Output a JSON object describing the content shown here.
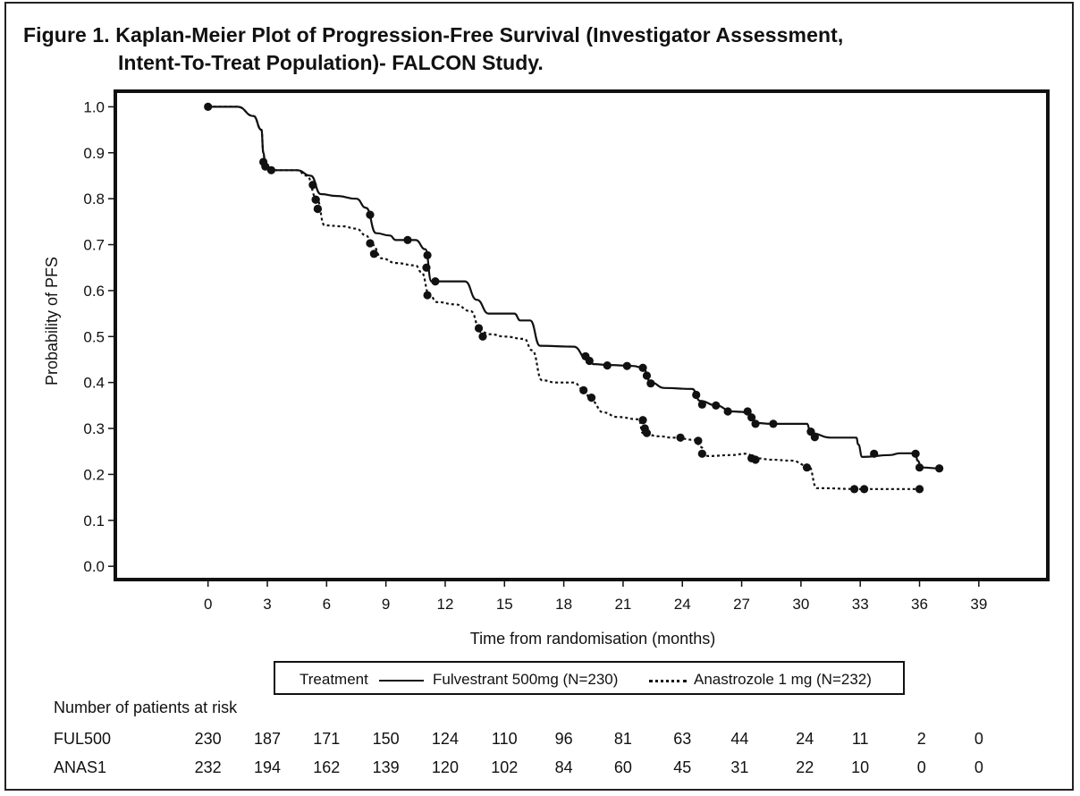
{
  "figure": {
    "title_line1": "Figure 1. Kaplan-Meier Plot of Progression-Free Survival (Investigator Assessment,",
    "title_line2": "Intent-To-Treat Population)- FALCON Study."
  },
  "chart_data": {
    "type": "line",
    "xlabel": "Time from randomisation (months)",
    "ylabel": "Probability of PFS",
    "xlim": [
      -4.6,
      42.4
    ],
    "ylim": [
      -0.025,
      1.03
    ],
    "x_ticks": [
      0,
      3,
      6,
      9,
      12,
      15,
      18,
      21,
      24,
      27,
      30,
      33,
      36,
      39
    ],
    "y_ticks": [
      0.0,
      0.1,
      0.2,
      0.3,
      0.4,
      0.5,
      0.6,
      0.7,
      0.8,
      0.9,
      1.0
    ],
    "y_tick_labels": [
      "0.0",
      "0.1",
      "0.2",
      "0.3",
      "0.4",
      "0.5",
      "0.6",
      "0.7",
      "0.8",
      "0.9",
      "1.0"
    ],
    "grid": false,
    "series": [
      {
        "name": "Fulvestrant 500mg (N=230)",
        "style": "solid",
        "color": "#111111",
        "curve": [
          [
            0,
            1.0
          ],
          [
            1.5,
            1.0
          ],
          [
            2.3,
            0.98
          ],
          [
            2.7,
            0.95
          ],
          [
            2.8,
            0.9
          ],
          [
            2.9,
            0.87
          ],
          [
            3.2,
            0.862
          ],
          [
            4.5,
            0.862
          ],
          [
            5.2,
            0.85
          ],
          [
            5.7,
            0.81
          ],
          [
            6.5,
            0.806
          ],
          [
            7.5,
            0.8
          ],
          [
            8.0,
            0.78
          ],
          [
            8.5,
            0.725
          ],
          [
            9.2,
            0.72
          ],
          [
            9.5,
            0.71
          ],
          [
            10.5,
            0.71
          ],
          [
            11.0,
            0.69
          ],
          [
            11.3,
            0.62
          ],
          [
            12.0,
            0.62
          ],
          [
            13.0,
            0.62
          ],
          [
            13.6,
            0.58
          ],
          [
            14.2,
            0.55
          ],
          [
            15.5,
            0.55
          ],
          [
            15.8,
            0.535
          ],
          [
            16.3,
            0.535
          ],
          [
            16.8,
            0.48
          ],
          [
            18.5,
            0.478
          ],
          [
            19.2,
            0.45
          ],
          [
            19.5,
            0.44
          ],
          [
            20.3,
            0.438
          ],
          [
            21.5,
            0.436
          ],
          [
            22.0,
            0.432
          ],
          [
            22.4,
            0.4
          ],
          [
            23.1,
            0.388
          ],
          [
            24.5,
            0.386
          ],
          [
            24.9,
            0.36
          ],
          [
            25.7,
            0.35
          ],
          [
            26.5,
            0.337
          ],
          [
            27.0,
            0.336
          ],
          [
            27.5,
            0.33
          ],
          [
            27.7,
            0.312
          ],
          [
            28.5,
            0.31
          ],
          [
            30.3,
            0.31
          ],
          [
            30.5,
            0.29
          ],
          [
            31.5,
            0.28
          ],
          [
            32.8,
            0.28
          ],
          [
            32.9,
            0.265
          ],
          [
            33.1,
            0.238
          ],
          [
            34.5,
            0.242
          ],
          [
            35.0,
            0.246
          ],
          [
            35.8,
            0.246
          ],
          [
            35.9,
            0.23
          ],
          [
            36.1,
            0.215
          ],
          [
            37.0,
            0.213
          ]
        ],
        "censor_marks": [
          [
            0,
            1.0
          ],
          [
            2.8,
            0.88
          ],
          [
            2.9,
            0.87
          ],
          [
            3.2,
            0.862
          ],
          [
            5.3,
            0.83
          ],
          [
            5.45,
            0.798
          ],
          [
            5.55,
            0.778
          ],
          [
            8.2,
            0.765
          ],
          [
            10.1,
            0.71
          ],
          [
            11.1,
            0.677
          ],
          [
            11.05,
            0.65
          ],
          [
            11.5,
            0.62
          ],
          [
            19.1,
            0.457
          ],
          [
            19.3,
            0.447
          ],
          [
            20.2,
            0.437
          ],
          [
            21.2,
            0.436
          ],
          [
            22.0,
            0.432
          ],
          [
            22.2,
            0.415
          ],
          [
            22.4,
            0.398
          ],
          [
            24.7,
            0.373
          ],
          [
            25.0,
            0.352
          ],
          [
            25.7,
            0.35
          ],
          [
            26.3,
            0.337
          ],
          [
            27.3,
            0.337
          ],
          [
            27.5,
            0.324
          ],
          [
            27.7,
            0.31
          ],
          [
            28.6,
            0.31
          ],
          [
            30.5,
            0.293
          ],
          [
            30.7,
            0.281
          ],
          [
            33.7,
            0.245
          ],
          [
            35.8,
            0.245
          ],
          [
            36.0,
            0.215
          ],
          [
            37.0,
            0.213
          ]
        ]
      },
      {
        "name": "Anastrozole 1 mg (N=232)",
        "style": "dashed",
        "color": "#111111",
        "curve": [
          [
            0,
            1.0
          ],
          [
            1.5,
            1.0
          ],
          [
            2.3,
            0.98
          ],
          [
            2.7,
            0.95
          ],
          [
            2.8,
            0.9
          ],
          [
            2.9,
            0.87
          ],
          [
            3.2,
            0.862
          ],
          [
            4.5,
            0.862
          ],
          [
            5.0,
            0.85
          ],
          [
            5.5,
            0.8
          ],
          [
            5.9,
            0.742
          ],
          [
            6.8,
            0.74
          ],
          [
            7.5,
            0.735
          ],
          [
            8.0,
            0.72
          ],
          [
            8.3,
            0.7
          ],
          [
            8.8,
            0.67
          ],
          [
            9.5,
            0.66
          ],
          [
            10.5,
            0.655
          ],
          [
            10.8,
            0.64
          ],
          [
            11.2,
            0.59
          ],
          [
            11.6,
            0.575
          ],
          [
            12.5,
            0.57
          ],
          [
            13.3,
            0.555
          ],
          [
            13.8,
            0.51
          ],
          [
            14.3,
            0.505
          ],
          [
            15.0,
            0.5
          ],
          [
            16.0,
            0.495
          ],
          [
            16.4,
            0.47
          ],
          [
            16.9,
            0.405
          ],
          [
            17.6,
            0.4
          ],
          [
            18.5,
            0.4
          ],
          [
            19.0,
            0.385
          ],
          [
            19.4,
            0.36
          ],
          [
            20.0,
            0.335
          ],
          [
            20.7,
            0.325
          ],
          [
            21.8,
            0.32
          ],
          [
            22.0,
            0.29
          ],
          [
            22.8,
            0.283
          ],
          [
            23.5,
            0.28
          ],
          [
            24.7,
            0.275
          ],
          [
            24.9,
            0.26
          ],
          [
            25.3,
            0.24
          ],
          [
            26.5,
            0.242
          ],
          [
            27.2,
            0.245
          ],
          [
            27.8,
            0.235
          ],
          [
            28.5,
            0.232
          ],
          [
            29.5,
            0.23
          ],
          [
            30.4,
            0.218
          ],
          [
            30.8,
            0.17
          ],
          [
            33.0,
            0.168
          ],
          [
            35.0,
            0.168
          ],
          [
            36.0,
            0.168
          ]
        ],
        "censor_marks": [
          [
            5.45,
            0.798
          ],
          [
            5.55,
            0.778
          ],
          [
            8.2,
            0.703
          ],
          [
            8.4,
            0.68
          ],
          [
            11.1,
            0.59
          ],
          [
            13.7,
            0.518
          ],
          [
            13.9,
            0.5
          ],
          [
            19.0,
            0.383
          ],
          [
            19.4,
            0.367
          ],
          [
            22.0,
            0.318
          ],
          [
            22.1,
            0.3
          ],
          [
            22.2,
            0.29
          ],
          [
            23.9,
            0.28
          ],
          [
            24.8,
            0.273
          ],
          [
            25.0,
            0.245
          ],
          [
            27.5,
            0.235
          ],
          [
            27.7,
            0.232
          ],
          [
            30.3,
            0.215
          ],
          [
            32.7,
            0.168
          ],
          [
            33.2,
            0.168
          ],
          [
            36.0,
            0.168
          ]
        ]
      }
    ],
    "legend": {
      "position": "bottom",
      "heading": "Treatment",
      "labels": [
        "Fulvestrant 500mg (N=230)",
        "Anastrozole 1 mg (N=232)"
      ]
    }
  },
  "risk_table": {
    "title": "Number of patients at risk",
    "rows": [
      {
        "label": "FUL500",
        "cells": [
          {
            "x": 0,
            "n": "230"
          },
          {
            "x": 3,
            "n": "187"
          },
          {
            "x": 6,
            "n": "171"
          },
          {
            "x": 9,
            "n": "150"
          },
          {
            "x": 12,
            "n": "124"
          },
          {
            "x": 15,
            "n": "110"
          },
          {
            "x": 18,
            "n": "96"
          },
          {
            "x": 21,
            "n": "81"
          },
          {
            "x": 24,
            "n": "63"
          },
          {
            "x": 26.9,
            "n": "44"
          },
          {
            "x": 30.2,
            "n": "24"
          },
          {
            "x": 33,
            "n": "11"
          },
          {
            "x": 36.1,
            "n": "2"
          },
          {
            "x": 39,
            "n": "0"
          }
        ]
      },
      {
        "label": "ANAS1",
        "cells": [
          {
            "x": 0,
            "n": "232"
          },
          {
            "x": 3,
            "n": "194"
          },
          {
            "x": 6,
            "n": "162"
          },
          {
            "x": 9,
            "n": "139"
          },
          {
            "x": 12,
            "n": "120"
          },
          {
            "x": 15,
            "n": "102"
          },
          {
            "x": 18,
            "n": "84"
          },
          {
            "x": 21,
            "n": "60"
          },
          {
            "x": 24,
            "n": "45"
          },
          {
            "x": 26.9,
            "n": "31"
          },
          {
            "x": 30.2,
            "n": "22"
          },
          {
            "x": 33,
            "n": "10"
          },
          {
            "x": 36.1,
            "n": "0"
          },
          {
            "x": 39,
            "n": "0"
          }
        ]
      }
    ]
  }
}
